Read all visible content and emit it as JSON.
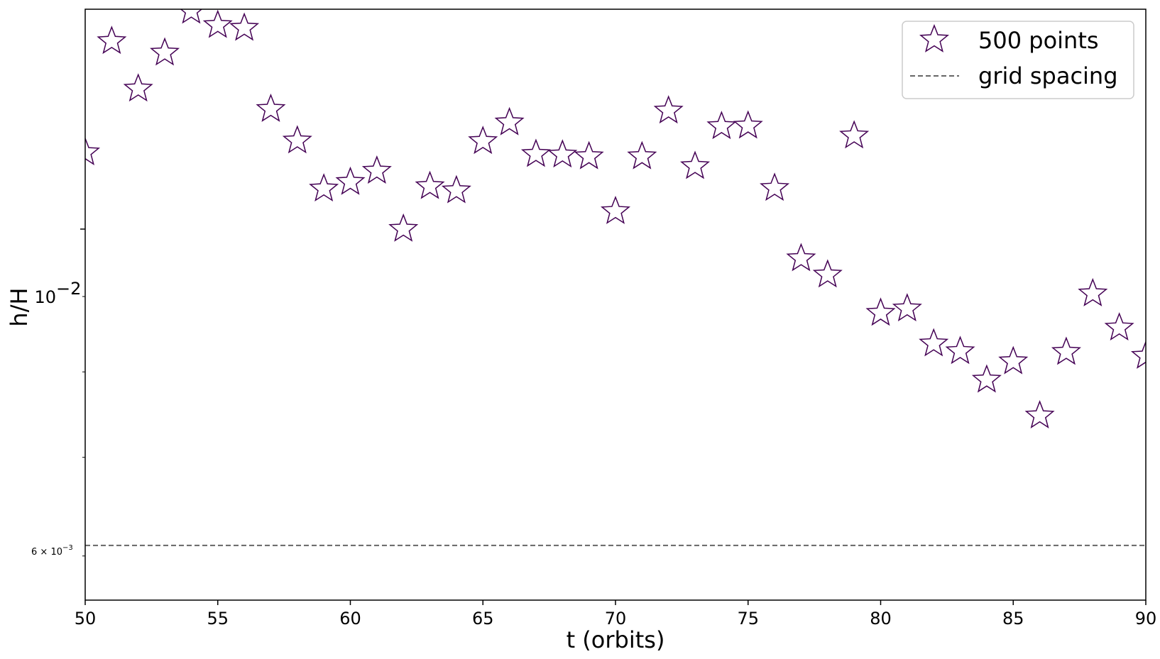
{
  "chart_data": {
    "type": "scatter",
    "xlabel": "t (orbits)",
    "ylabel": "h/H",
    "xlim": [
      50,
      90
    ],
    "ylim": [
      0.0056,
      0.0141
    ],
    "yscale": "log",
    "x_ticks": [
      "50",
      "55",
      "60",
      "65",
      "70",
      "75",
      "80",
      "85",
      "90"
    ],
    "y_major_tick": {
      "value": 0.01,
      "label": "10",
      "exponent": "−2"
    },
    "y_minor_tick_labeled": {
      "value": 0.006,
      "label": "6 × 10",
      "exponent": "−3"
    },
    "grid": false,
    "legend_position": "top-right",
    "series": [
      {
        "name": "500 points",
        "marker": "star",
        "marker_edge_color": "#440154",
        "marker_face_color": "#ffffff",
        "x": [
          50,
          51,
          52,
          53,
          54,
          55,
          56,
          57,
          58,
          59,
          60,
          61,
          62,
          63,
          64,
          65,
          66,
          67,
          68,
          69,
          70,
          71,
          72,
          73,
          74,
          75,
          76,
          77,
          78,
          79,
          80,
          81,
          82,
          83,
          84,
          85,
          86,
          87,
          88,
          89,
          90
        ],
        "y": [
          0.01127,
          0.01341,
          0.01245,
          0.01317,
          0.01406,
          0.01375,
          0.01369,
          0.01206,
          0.01148,
          0.01065,
          0.01076,
          0.01095,
          0.01,
          0.01069,
          0.01062,
          0.01147,
          0.01181,
          0.01124,
          0.01123,
          0.0112,
          0.01028,
          0.0112,
          0.01203,
          0.01103,
          0.01174,
          0.01175,
          0.01066,
          0.00955,
          0.00931,
          0.01157,
          0.00877,
          0.00883,
          0.00836,
          0.00826,
          0.0079,
          0.00813,
          0.00747,
          0.00825,
          0.00904,
          0.00857,
          0.0082
        ]
      },
      {
        "name": "grid spacing",
        "style": "dashed",
        "color": "#666666",
        "y": 0.0061
      }
    ]
  }
}
